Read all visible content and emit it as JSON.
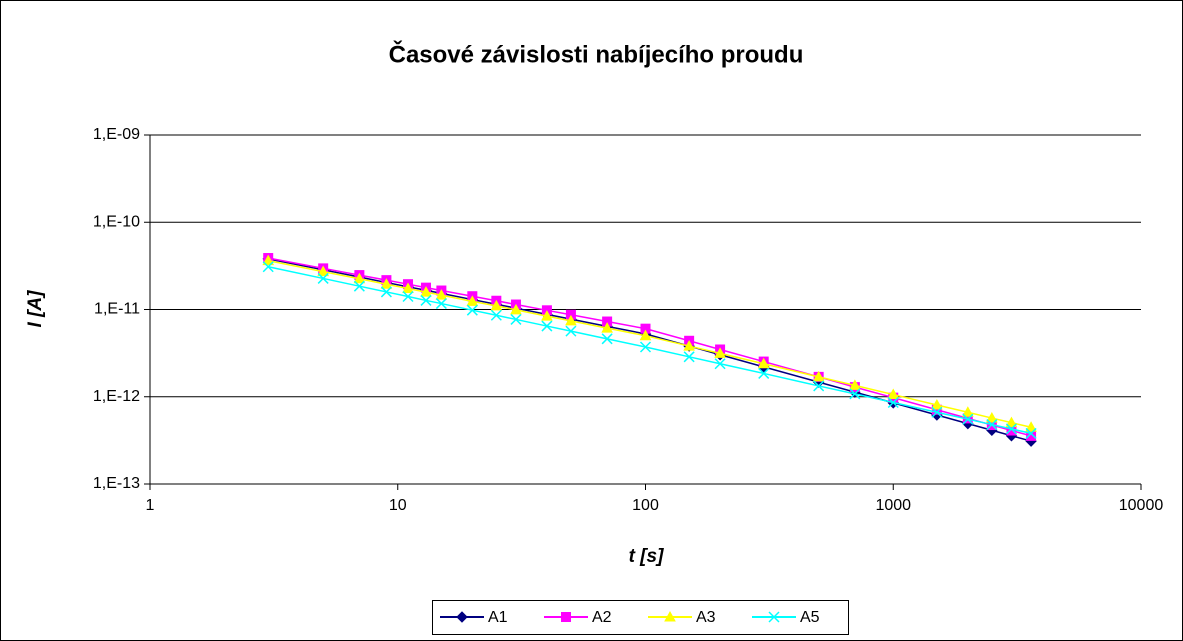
{
  "chart_data": {
    "type": "scatter",
    "title": "Časové závislosti nabíjecího proudu",
    "x_label": "t [s]",
    "y_label": "I [A]",
    "x_log": true,
    "y_log": true,
    "grid": true,
    "legend": "bottom",
    "x": [
      3,
      5,
      7,
      9,
      11,
      13,
      15,
      20,
      25,
      30,
      40,
      50,
      70,
      100,
      150,
      200,
      300,
      500,
      700,
      1000,
      1500,
      2000,
      2500,
      3000,
      3600
    ],
    "series": [
      {
        "name": "A1",
        "color": "#000080",
        "marker": "diamond",
        "values": [
          3.8e-11,
          2.85e-11,
          2.36e-11,
          2.04e-11,
          1.82e-11,
          1.66e-11,
          1.53e-11,
          1.3e-11,
          1.15e-11,
          1.035e-11,
          8.79e-12,
          7.76e-12,
          6.41e-12,
          5.25e-12,
          3.81e-12,
          3.03e-12,
          2.2e-12,
          1.47e-12,
          1.13e-12,
          8.51e-13,
          6.18e-13,
          4.92e-13,
          4.13e-13,
          3.57e-13,
          3.1e-13
        ]
      },
      {
        "name": "A2",
        "color": "#ff00ff",
        "marker": "square",
        "values": [
          3.89e-11,
          2.96e-11,
          2.48e-11,
          2.17e-11,
          1.95e-11,
          1.78e-11,
          1.65e-11,
          1.42e-11,
          1.26e-11,
          1.14e-11,
          9.79e-12,
          8.71e-12,
          7.28e-12,
          6.03e-12,
          4.38e-12,
          3.48e-12,
          2.53e-12,
          1.69e-12,
          1.29e-12,
          9.77e-13,
          7.1e-13,
          5.65e-13,
          4.74e-13,
          4.1e-13,
          3.56e-13
        ]
      },
      {
        "name": "A3",
        "color": "#ffff00",
        "marker": "triangle",
        "values": [
          3.63e-11,
          2.72e-11,
          2.25e-11,
          1.95e-11,
          1.74e-11,
          1.58e-11,
          1.46e-11,
          1.24e-11,
          1.1e-11,
          9.89e-12,
          8.39e-12,
          7.41e-12,
          6.12e-12,
          5.01e-12,
          3.81e-12,
          3.14e-12,
          2.39e-12,
          1.69e-12,
          1.35e-12,
          1.06e-12,
          8.05e-13,
          6.64e-13,
          5.7e-13,
          5.05e-13,
          4.47e-13
        ]
      },
      {
        "name": "A5",
        "color": "#00ffff",
        "marker": "x",
        "values": [
          3.09e-11,
          2.27e-11,
          1.85e-11,
          1.59e-11,
          1.41e-11,
          1.27e-11,
          1.17e-11,
          9.82e-12,
          8.59e-12,
          7.69e-12,
          6.46e-12,
          5.65e-12,
          4.61e-12,
          3.72e-12,
          2.87e-12,
          2.39e-12,
          1.85e-12,
          1.33e-12,
          1.08e-12,
          8.59e-13,
          6.64e-13,
          5.53e-13,
          4.8e-13,
          4.28e-13,
          3.8e-13
        ]
      }
    ],
    "xlim": [
      1,
      10000
    ],
    "xticks": [
      1,
      10,
      100,
      1000,
      10000
    ],
    "ylim": [
      1e-13,
      1e-09
    ],
    "yticks": [
      {
        "value": 1e-13,
        "label": "1,E-13"
      },
      {
        "value": 1e-12,
        "label": "1,E-12"
      },
      {
        "value": 1e-11,
        "label": "1,E-11"
      },
      {
        "value": 1e-10,
        "label": "1,E-10"
      },
      {
        "value": 1e-09,
        "label": "1,E-09"
      }
    ]
  }
}
